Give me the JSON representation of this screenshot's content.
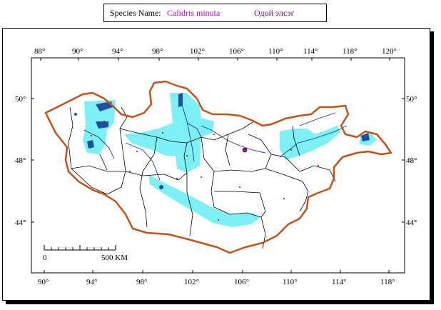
{
  "header": {
    "species_label": "Species Name:",
    "latin_name": "Calidris minuta",
    "local_name": "Одой элсэг"
  },
  "map": {
    "top_ticks": [
      "88°",
      "90°",
      "94°",
      "98°",
      "102°",
      "106°",
      "110°",
      "114°",
      "118°",
      "120°"
    ],
    "bottom_ticks": [
      "90°",
      "94°",
      "98°",
      "102°",
      "106°",
      "110°",
      "114°",
      "118°"
    ],
    "lat_ticks": [
      "50°",
      "48°",
      "44°"
    ],
    "scale_start": "0",
    "scale_end": "500 KM"
  },
  "colors": {
    "border": "#c0521a",
    "range": "#7df0f5",
    "lake": "#1f4fa0",
    "label_latin": "#c000c0",
    "label_local": "#7a0070"
  }
}
